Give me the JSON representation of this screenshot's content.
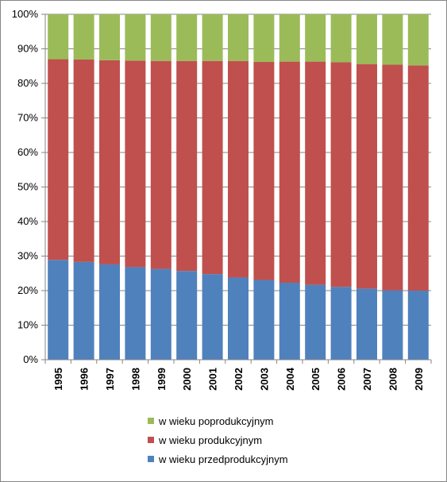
{
  "chart_data": {
    "type": "bar",
    "stacked": true,
    "normalized": true,
    "categories": [
      "1995",
      "1996",
      "1997",
      "1998",
      "1999",
      "2000",
      "2001",
      "2002",
      "2003",
      "2004",
      "2005",
      "2006",
      "2007",
      "2008",
      "2009"
    ],
    "series": [
      {
        "name": "w wieku przedprodukcyjnym",
        "color": "#4F81BD",
        "values": [
          28.9,
          28.3,
          27.6,
          26.8,
          26.3,
          25.7,
          24.8,
          23.8,
          23.1,
          22.3,
          21.7,
          21.1,
          20.6,
          20.1,
          20.0
        ]
      },
      {
        "name": "w wieku produkcyjnym",
        "color": "#C0504D",
        "values": [
          58.1,
          58.6,
          59.1,
          59.8,
          60.2,
          60.8,
          61.7,
          62.7,
          63.1,
          64.0,
          64.6,
          65.0,
          65.0,
          65.3,
          65.2
        ]
      },
      {
        "name": "w wieku poprodukcyjnym",
        "color": "#9BBB59",
        "values": [
          13.0,
          13.1,
          13.3,
          13.4,
          13.5,
          13.5,
          13.5,
          13.5,
          13.8,
          13.7,
          13.7,
          13.9,
          14.4,
          14.6,
          14.8
        ]
      }
    ],
    "yticks": [
      "0%",
      "10%",
      "20%",
      "30%",
      "40%",
      "50%",
      "60%",
      "70%",
      "80%",
      "90%",
      "100%"
    ],
    "ylim": [
      0,
      100
    ],
    "grid": true,
    "legend_position": "bottom",
    "legend_order": [
      "w wieku poprodukcyjnym",
      "w wieku produkcyjnym",
      "w wieku przedprodukcyjnym"
    ]
  }
}
